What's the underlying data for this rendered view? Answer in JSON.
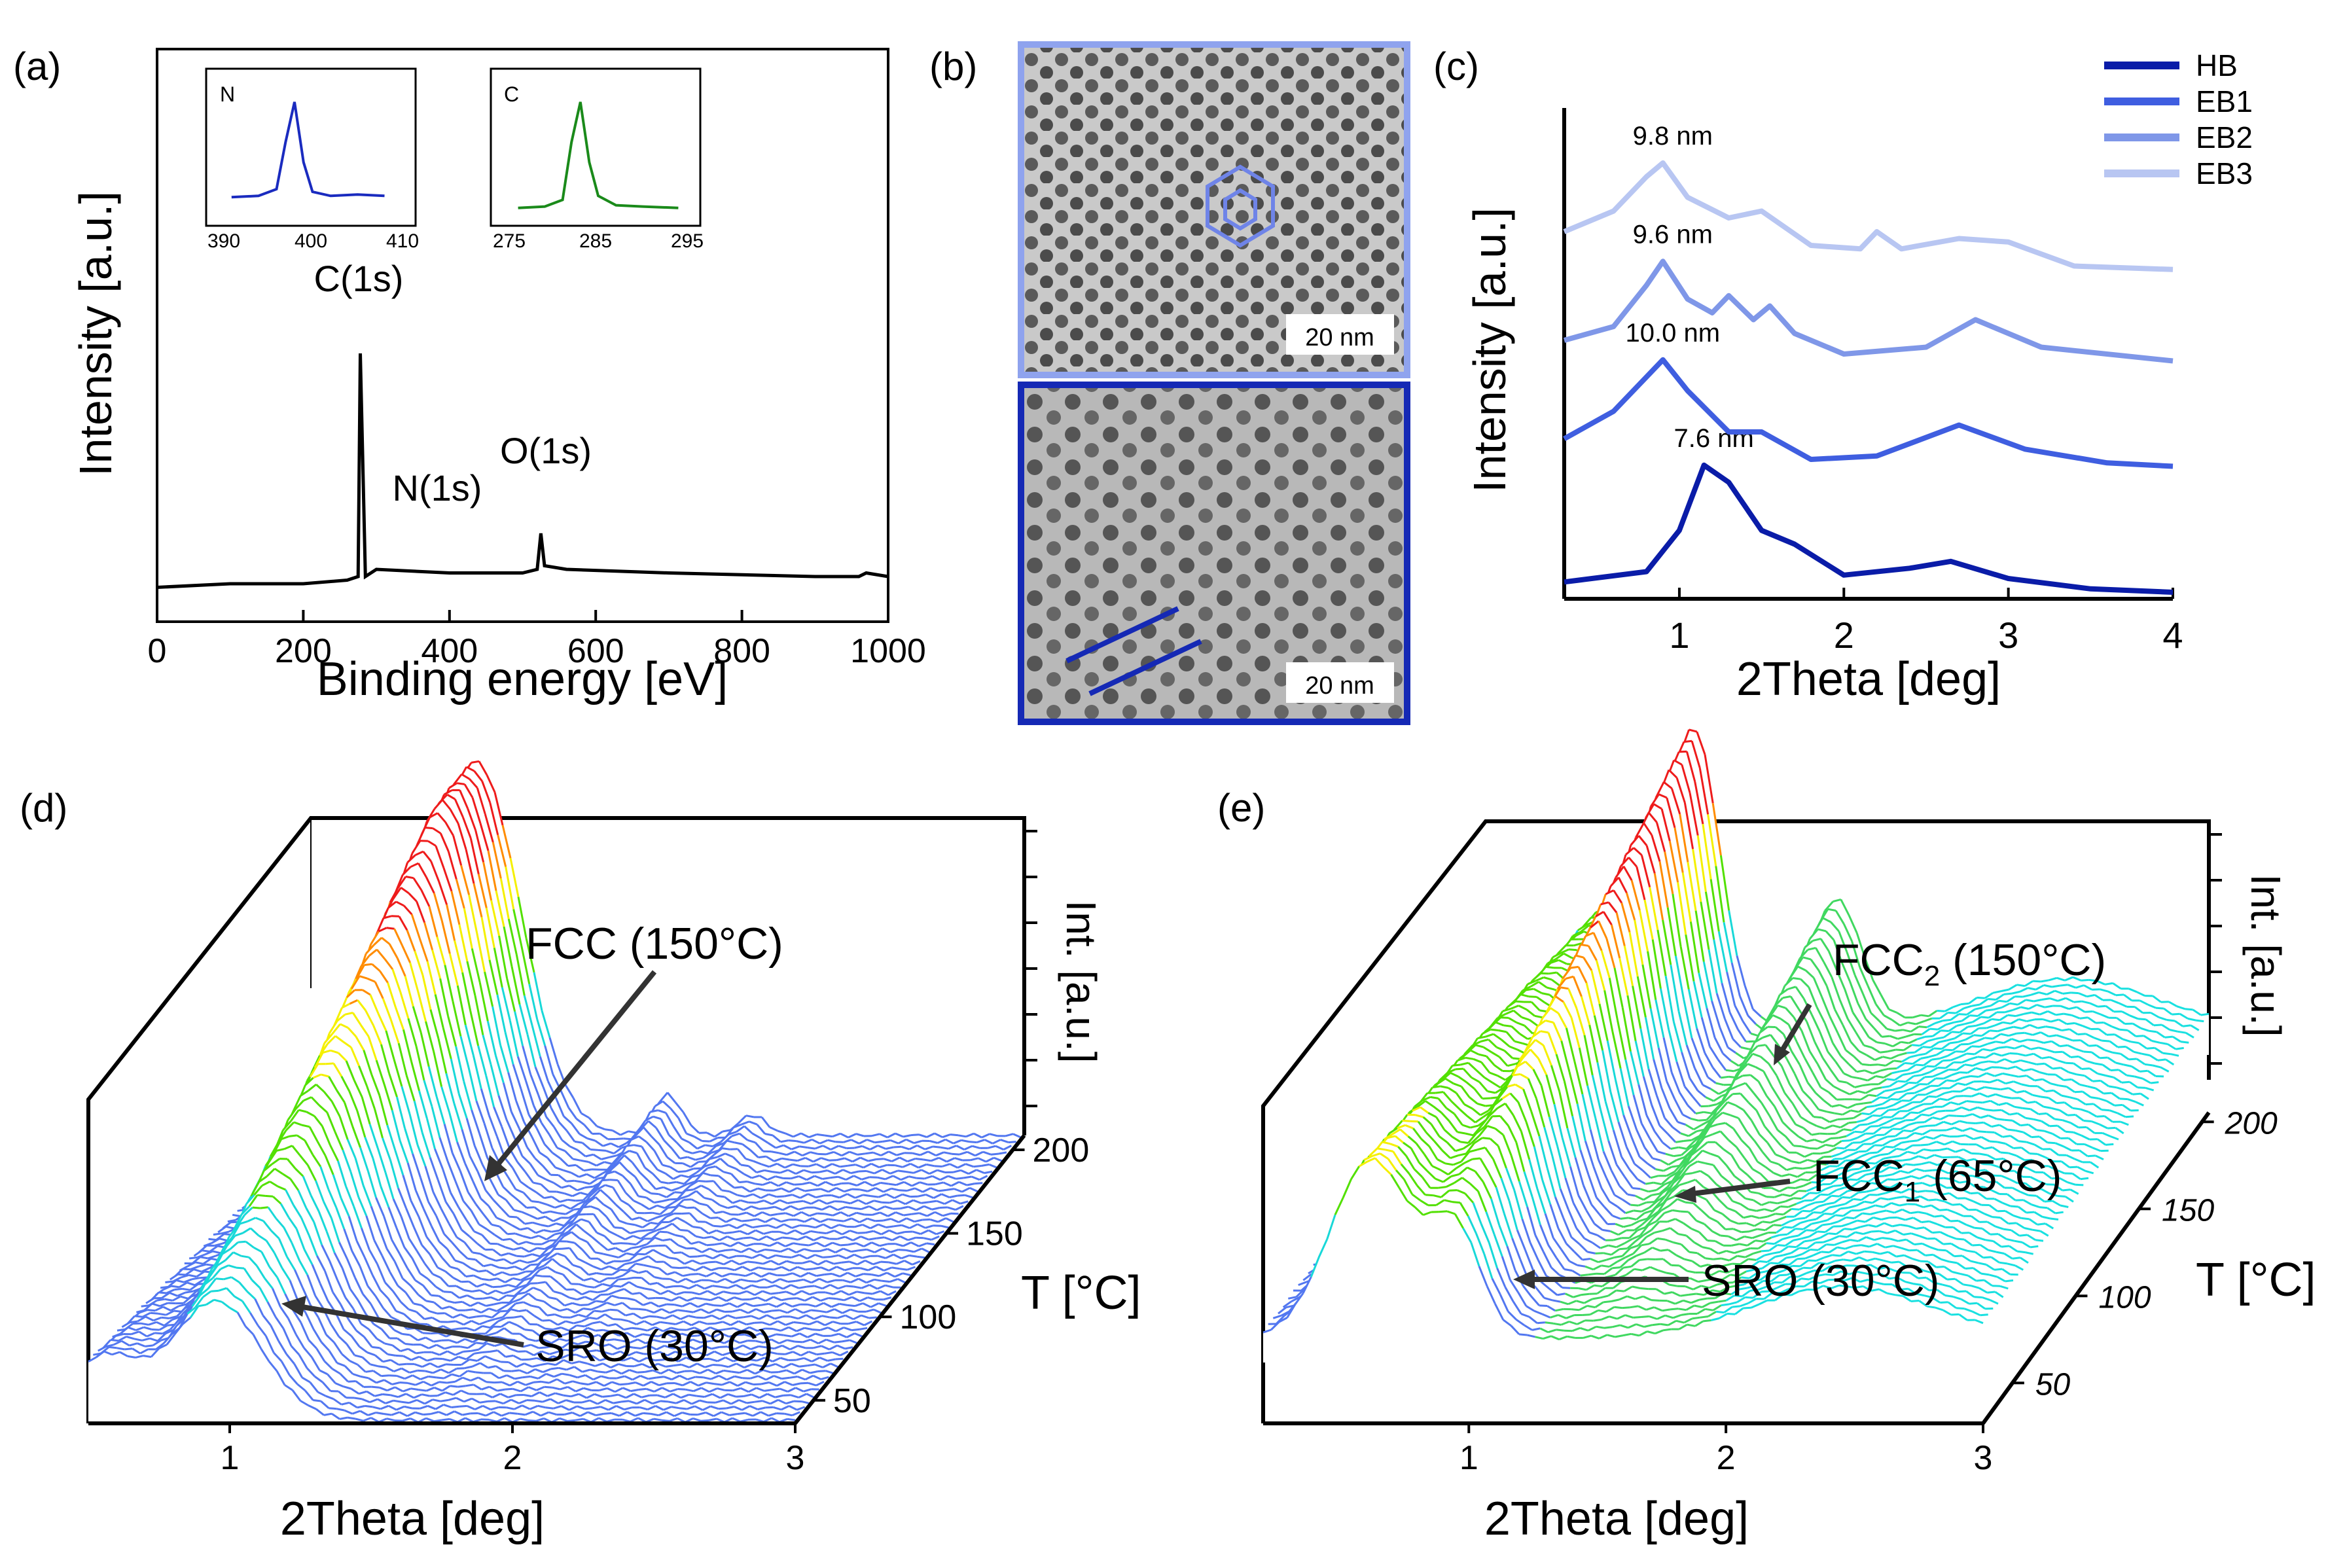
{
  "panels": {
    "a": {
      "label": "(a)"
    },
    "b": {
      "label": "(b)",
      "scalebar_top": "20 nm",
      "scalebar_bottom": "20 nm"
    },
    "c": {
      "label": "(c)"
    },
    "d": {
      "label": "(d)"
    },
    "e": {
      "label": "(e)"
    }
  },
  "colors": {
    "HB": "#0a1ca8",
    "EB1": "#3f5ee0",
    "EB2": "#7f97e8",
    "EB3": "#b8c6f2",
    "xps": "#000000",
    "inset_N": "#1a2bbf",
    "inset_C": "#1a8a1a",
    "frame_top_tem": "#8fa3ee",
    "frame_bottom_tem": "#1529b5"
  },
  "chart_data": [
    {
      "id": "a",
      "type": "line",
      "title": "",
      "xlabel": "Binding energy [eV]",
      "ylabel": "Intensity [a.u.]",
      "xlim": [
        0,
        1000
      ],
      "ylim": [
        0,
        100
      ],
      "xticks": [
        "0",
        "200",
        "400",
        "600",
        "800",
        "1000"
      ],
      "x": [
        0,
        100,
        200,
        260,
        275,
        278,
        285,
        300,
        400,
        500,
        520,
        525,
        530,
        560,
        700,
        900,
        960,
        970,
        1000
      ],
      "values": [
        5,
        6,
        6,
        7,
        8,
        70,
        8,
        10,
        9,
        9,
        10,
        20,
        11,
        10,
        9,
        8,
        8,
        9,
        8
      ],
      "annotations": [
        "C(1s)",
        "N(1s)",
        "O(1s)"
      ],
      "insets": [
        {
          "label": "N",
          "xticks": [
            "390",
            "400",
            "410"
          ],
          "xlim": [
            390,
            410
          ],
          "x": [
            391,
            394,
            396,
            397,
            398,
            399,
            400,
            402,
            405,
            408
          ],
          "values": [
            14,
            15,
            20,
            55,
            85,
            40,
            18,
            15,
            16,
            15
          ]
        },
        {
          "label": "C",
          "xticks": [
            "275",
            "285",
            "295"
          ],
          "xlim": [
            275,
            295
          ],
          "x": [
            276,
            279,
            281,
            282,
            283,
            284,
            285,
            287,
            290,
            294
          ],
          "values": [
            6,
            7,
            12,
            55,
            85,
            40,
            15,
            8,
            7,
            6
          ]
        }
      ]
    },
    {
      "id": "c",
      "type": "line",
      "xlabel": "2Theta [deg]",
      "ylabel": "Intensity [a.u.]",
      "xlim": [
        0.3,
        4
      ],
      "xticks": [
        "1",
        "2",
        "3",
        "4"
      ],
      "series": [
        {
          "name": "HB",
          "peak_label": "7.6 nm",
          "x": [
            0.3,
            0.8,
            1.0,
            1.15,
            1.3,
            1.5,
            1.7,
            2.0,
            2.4,
            2.65,
            3.0,
            3.5,
            4.0
          ],
          "values": [
            0.15,
            0.3,
            0.9,
            1.85,
            1.6,
            0.9,
            0.7,
            0.25,
            0.35,
            0.45,
            0.2,
            0.05,
            0.0
          ]
        },
        {
          "name": "EB1",
          "peak_label": "10.0 nm",
          "x": [
            0.3,
            0.6,
            0.8,
            0.9,
            1.05,
            1.3,
            1.5,
            1.8,
            2.2,
            2.7,
            3.1,
            3.6,
            4.0
          ],
          "values": [
            0.9,
            1.3,
            1.8,
            2.05,
            1.6,
            1.0,
            1.0,
            0.6,
            0.65,
            1.1,
            0.75,
            0.55,
            0.5
          ]
        },
        {
          "name": "EB2",
          "peak_label": "9.6 nm",
          "x": [
            0.3,
            0.6,
            0.8,
            0.9,
            1.05,
            1.2,
            1.3,
            1.45,
            1.55,
            1.7,
            2.0,
            2.5,
            2.8,
            3.2,
            4.0
          ],
          "values": [
            1.0,
            1.2,
            1.8,
            2.15,
            1.6,
            1.4,
            1.65,
            1.3,
            1.5,
            1.1,
            0.8,
            0.9,
            1.3,
            0.9,
            0.7
          ]
        },
        {
          "name": "EB3",
          "peak_label": "9.8 nm",
          "x": [
            0.3,
            0.6,
            0.8,
            0.9,
            1.05,
            1.3,
            1.5,
            1.8,
            2.1,
            2.2,
            2.35,
            2.7,
            3.0,
            3.4,
            4.0
          ],
          "values": [
            1.2,
            1.5,
            2.0,
            2.2,
            1.7,
            1.4,
            1.5,
            1.0,
            0.95,
            1.2,
            0.95,
            1.1,
            1.05,
            0.7,
            0.65
          ]
        }
      ]
    },
    {
      "id": "d",
      "type": "waterfall-3d",
      "xlabel": "2Theta [deg]",
      "ylabel": "T [°C]",
      "zlabel": "Int. [a.u.]",
      "xlim": [
        0.5,
        3
      ],
      "xticks": [
        "1",
        "2",
        "3"
      ],
      "yticks": [
        "50",
        "100",
        "150",
        "200"
      ],
      "annotations": [
        "FCC (150°C)",
        "SRO (30°C)"
      ]
    },
    {
      "id": "e",
      "type": "waterfall-3d",
      "xlabel": "2Theta [deg]",
      "ylabel": "T [°C]",
      "zlabel": "Int. [a.u.]",
      "xlim": [
        0.2,
        3
      ],
      "xticks": [
        "1",
        "2",
        "3"
      ],
      "yticks": [
        "50",
        "100",
        "150",
        "200"
      ],
      "annotations": [
        "FCC2 (150°C)",
        "FCC1 (65°C)",
        "SRO (30°C)"
      ]
    }
  ],
  "text": {
    "c_legend": [
      "HB",
      "EB1",
      "EB2",
      "EB3"
    ],
    "d_fcc": "FCC (150°C)",
    "d_sro": "SRO (30°C)",
    "e_fcc2_a": "FCC",
    "e_fcc2_sub": "2",
    "e_fcc2_b": " (150°C)",
    "e_fcc1_a": "FCC",
    "e_fcc1_sub": "1",
    "e_fcc1_b": " (65°C)",
    "e_sro": "SRO (30°C)"
  }
}
